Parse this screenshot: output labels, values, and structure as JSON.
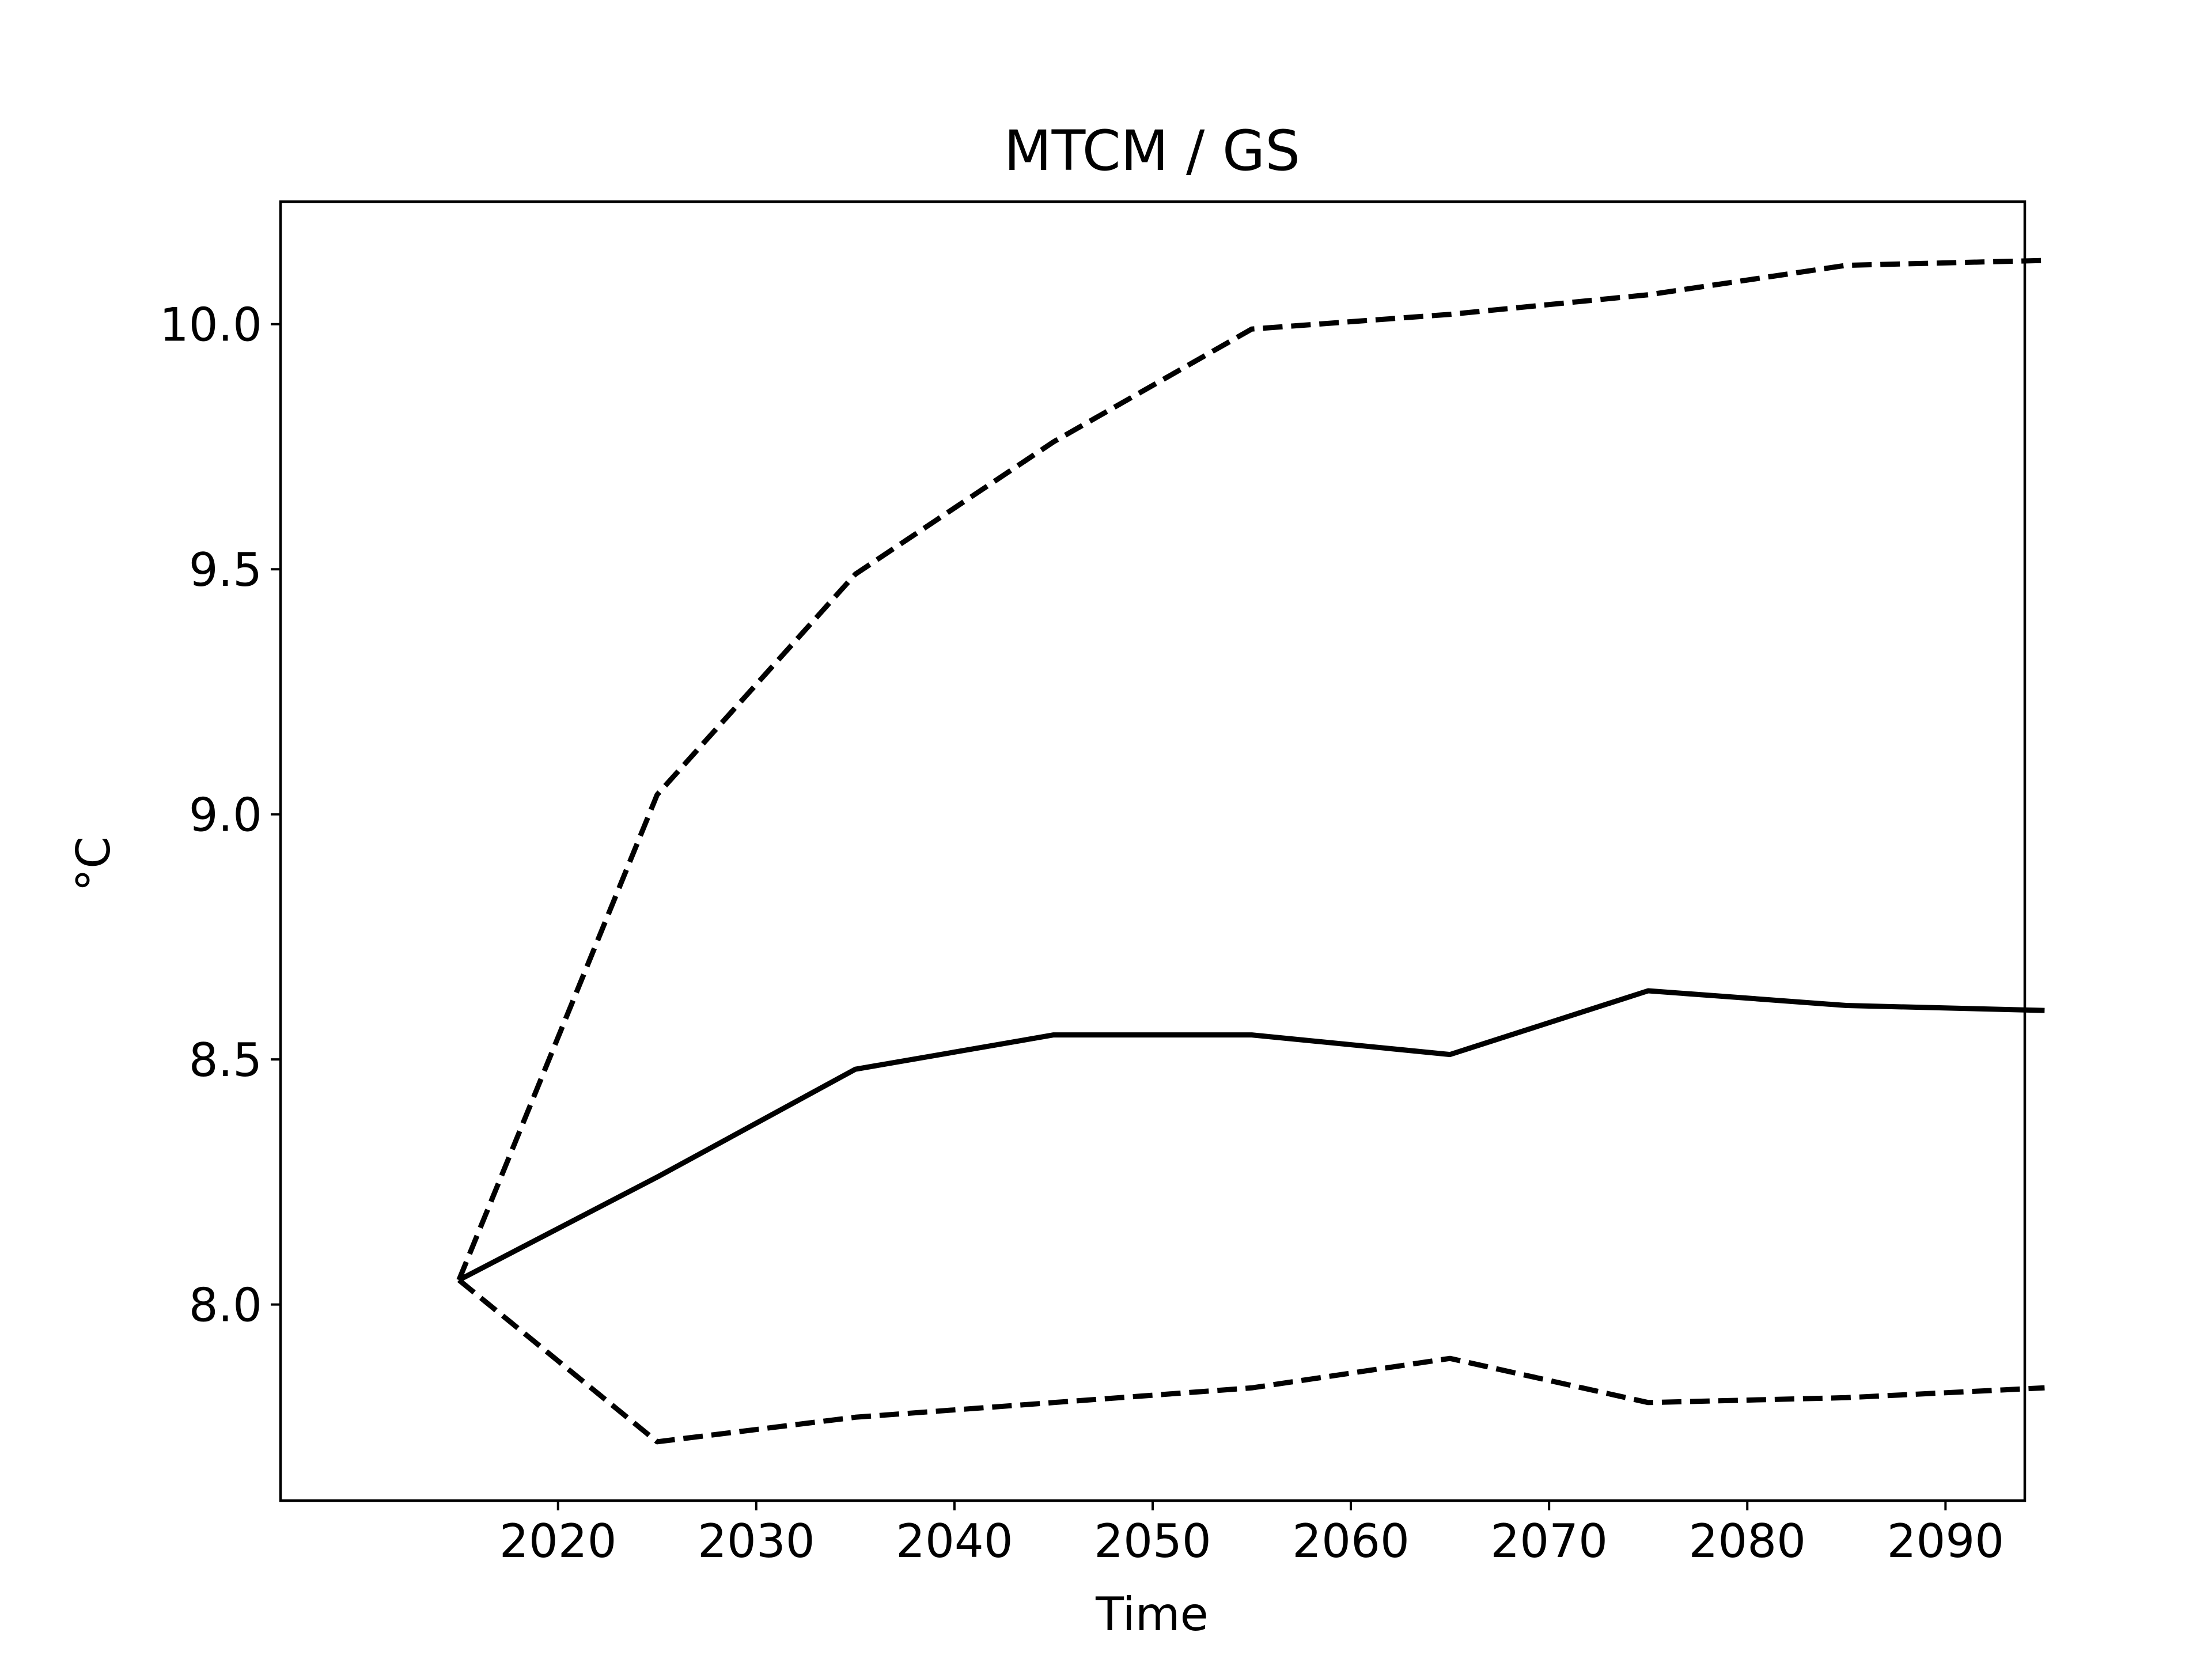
{
  "chart_data": {
    "type": "line",
    "title": "MTCM / GS",
    "xlabel": "Time",
    "ylabel": "°C",
    "x": [
      2015,
      2025,
      2035,
      2045,
      2055,
      2065,
      2075,
      2085,
      2095
    ],
    "xticks": [
      2020,
      2030,
      2040,
      2050,
      2060,
      2070,
      2080,
      2090
    ],
    "yticks": [
      8.0,
      8.5,
      9.0,
      9.5,
      10.0
    ],
    "xlim": [
      2006,
      2094
    ],
    "ylim": [
      7.6,
      10.25
    ],
    "grid": false,
    "legend": "none",
    "series": [
      {
        "style": "solid",
        "color": "#000000",
        "values": [
          8.05,
          8.26,
          8.48,
          8.55,
          8.55,
          8.51,
          8.64,
          8.61,
          8.6
        ]
      },
      {
        "style": "dashed",
        "color": "#000000",
        "values": [
          8.05,
          9.04,
          9.49,
          9.76,
          9.99,
          10.02,
          10.06,
          10.12,
          10.13
        ]
      },
      {
        "style": "dashed",
        "color": "#000000",
        "values": [
          8.05,
          7.72,
          7.77,
          7.8,
          7.83,
          7.89,
          7.8,
          7.81,
          7.83
        ]
      }
    ]
  }
}
